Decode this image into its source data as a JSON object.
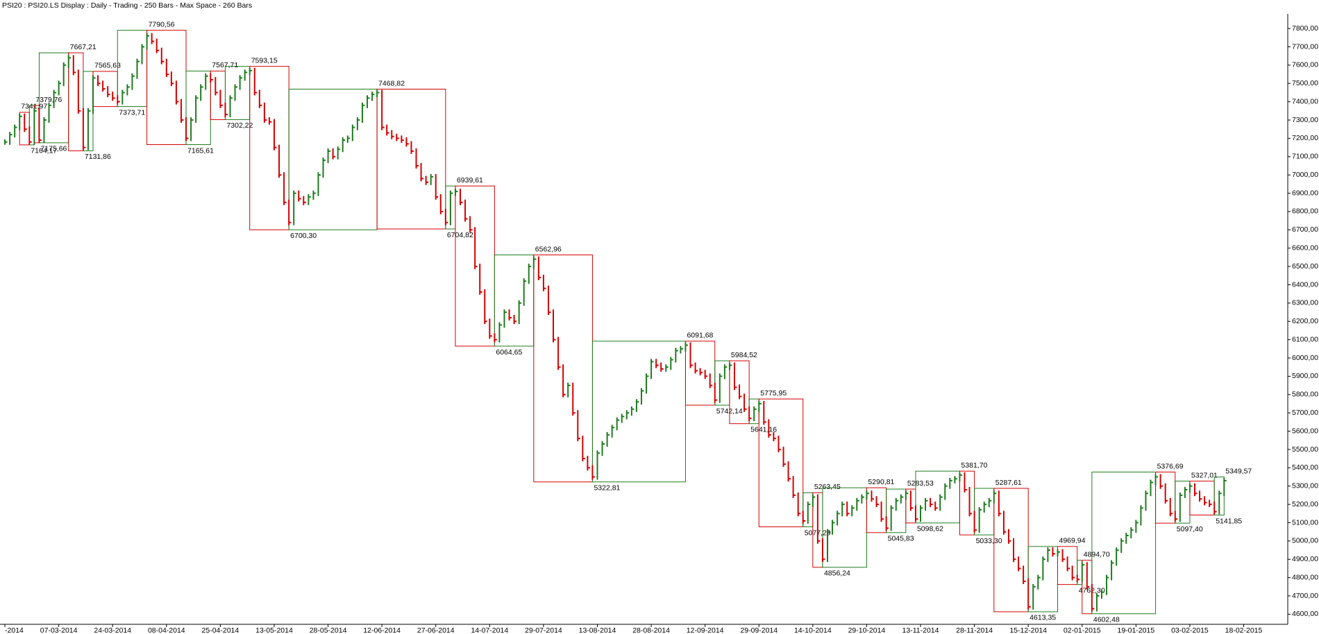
{
  "chart_data": {
    "type": "ohlc",
    "title": "PSI20 : PSI20.LS Display :  Daily  - Trading - 250 Bars  - Max Space - 260 Bars",
    "up_color": "#1e7b1e",
    "down_color": "#d40000",
    "xlim": [
      -1,
      262
    ],
    "ylim": [
      4560,
      7880
    ],
    "xticks": [
      {
        "value": 0,
        "label": "-2014"
      },
      {
        "value": 11,
        "label": "07-03-2014"
      },
      {
        "value": 22,
        "label": "24-03-2014"
      },
      {
        "value": 33,
        "label": "08-04-2014"
      },
      {
        "value": 44,
        "label": "25-04-2014"
      },
      {
        "value": 55,
        "label": "13-05-2014"
      },
      {
        "value": 66,
        "label": "28-05-2014"
      },
      {
        "value": 77,
        "label": "12-06-2014"
      },
      {
        "value": 88,
        "label": "27-06-2014"
      },
      {
        "value": 99,
        "label": "14-07-2014"
      },
      {
        "value": 110,
        "label": "29-07-2014"
      },
      {
        "value": 121,
        "label": "13-08-2014"
      },
      {
        "value": 132,
        "label": "28-08-2014"
      },
      {
        "value": 143,
        "label": "12-09-2014"
      },
      {
        "value": 154,
        "label": "29-09-2014"
      },
      {
        "value": 165,
        "label": "14-10-2014"
      },
      {
        "value": 176,
        "label": "29-10-2014"
      },
      {
        "value": 187,
        "label": "13-11-2014"
      },
      {
        "value": 198,
        "label": "28-11-2014"
      },
      {
        "value": 209,
        "label": "15-12-2014"
      },
      {
        "value": 220,
        "label": "02-01-2015"
      },
      {
        "value": 231,
        "label": "19-01-2015"
      },
      {
        "value": 242,
        "label": "03-02-2015"
      },
      {
        "value": 253,
        "label": "18-02-2015"
      }
    ],
    "yticks": [
      {
        "value": 4600,
        "label": "4600,00"
      },
      {
        "value": 4700,
        "label": "4700,00"
      },
      {
        "value": 4800,
        "label": "4800,00"
      },
      {
        "value": 4900,
        "label": "4900,00"
      },
      {
        "value": 5000,
        "label": "5000,00"
      },
      {
        "value": 5100,
        "label": "5100,00"
      },
      {
        "value": 5200,
        "label": "5200,00"
      },
      {
        "value": 5300,
        "label": "5300,00"
      },
      {
        "value": 5400,
        "label": "5400,00"
      },
      {
        "value": 5500,
        "label": "5500,00"
      },
      {
        "value": 5600,
        "label": "5600,00"
      },
      {
        "value": 5700,
        "label": "5700,00"
      },
      {
        "value": 5800,
        "label": "5800,00"
      },
      {
        "value": 5900,
        "label": "5900,00"
      },
      {
        "value": 6000,
        "label": "6000,00"
      },
      {
        "value": 6100,
        "label": "6100,00"
      },
      {
        "value": 6200,
        "label": "6200,00"
      },
      {
        "value": 6300,
        "label": "6300,00"
      },
      {
        "value": 6400,
        "label": "6400,00"
      },
      {
        "value": 6500,
        "label": "6500,00"
      },
      {
        "value": 6600,
        "label": "6600,00"
      },
      {
        "value": 6700,
        "label": "6700,00"
      },
      {
        "value": 6800,
        "label": "6800,00"
      },
      {
        "value": 6900,
        "label": "6900,00"
      },
      {
        "value": 7000,
        "label": "7000,00"
      },
      {
        "value": 7100,
        "label": "7100,00"
      },
      {
        "value": 7200,
        "label": "7200,00"
      },
      {
        "value": 7300,
        "label": "7300,00"
      },
      {
        "value": 7400,
        "label": "7400,00"
      },
      {
        "value": 7500,
        "label": "7500,00"
      },
      {
        "value": 7600,
        "label": "7600,00"
      },
      {
        "value": 7700,
        "label": "7700,00"
      },
      {
        "value": 7800,
        "label": "7800,00"
      }
    ],
    "values": [
      7180,
      7220,
      7260,
      7320,
      7250,
      7180,
      7350,
      7190,
      7300,
      7380,
      7450,
      7500,
      7600,
      7640,
      7560,
      7350,
      7150,
      7350,
      7530,
      7500,
      7470,
      7440,
      7420,
      7400,
      7450,
      7480,
      7540,
      7620,
      7700,
      7760,
      7730,
      7680,
      7620,
      7550,
      7500,
      7400,
      7300,
      7200,
      7300,
      7420,
      7480,
      7540,
      7520,
      7450,
      7380,
      7330,
      7420,
      7480,
      7530,
      7560,
      7570,
      7450,
      7380,
      7300,
      7290,
      7150,
      7000,
      6850,
      6740,
      6900,
      6870,
      6850,
      6880,
      6900,
      7000,
      7080,
      7130,
      7100,
      7140,
      7190,
      7200,
      7260,
      7300,
      7380,
      7420,
      7440,
      7450,
      7260,
      7230,
      7210,
      7200,
      7190,
      7170,
      7130,
      7050,
      6980,
      6960,
      6990,
      6880,
      6800,
      6740,
      6900,
      6910,
      6850,
      6760,
      6700,
      6500,
      6360,
      6200,
      6120,
      6100,
      6180,
      6250,
      6220,
      6200,
      6300,
      6420,
      6500,
      6540,
      6440,
      6380,
      6250,
      6100,
      5950,
      5800,
      5850,
      5700,
      5560,
      5450,
      5400,
      5350,
      5480,
      5530,
      5580,
      5620,
      5660,
      5680,
      5700,
      5720,
      5760,
      5820,
      5900,
      5980,
      5960,
      5940,
      5950,
      5990,
      6040,
      6050,
      6070,
      5960,
      5930,
      5920,
      5900,
      5850,
      5770,
      5900,
      5950,
      5960,
      5840,
      5790,
      5720,
      5670,
      5720,
      5750,
      5650,
      5580,
      5560,
      5500,
      5420,
      5340,
      5250,
      5150,
      5110,
      5200,
      5240,
      5000,
      4900,
      5050,
      5100,
      5150,
      5200,
      5150,
      5180,
      5220,
      5240,
      5260,
      5230,
      5200,
      5120,
      5070,
      5180,
      5220,
      5240,
      5260,
      5180,
      5120,
      5180,
      5220,
      5200,
      5180,
      5240,
      5300,
      5330,
      5340,
      5360,
      5280,
      5150,
      5060,
      5170,
      5200,
      5220,
      5260,
      5150,
      5050,
      5000,
      4900,
      4850,
      4780,
      4640,
      4750,
      4800,
      4900,
      4950,
      4930,
      4940,
      4900,
      4850,
      4800,
      4790,
      4870,
      4750,
      4630,
      4700,
      4720,
      4800,
      4880,
      4950,
      5000,
      5030,
      5060,
      5100,
      5180,
      5260,
      5320,
      5350,
      5300,
      5220,
      5150,
      5120,
      5250,
      5280,
      5300,
      5260,
      5230,
      5210,
      5200,
      5160,
      5260,
      5330
    ],
    "swings": [
      {
        "x": 3,
        "value": 7341.97,
        "label": "7341,97"
      },
      {
        "x": 5,
        "value": 7164.17,
        "label": "7164,17"
      },
      {
        "x": 6,
        "value": 7379.76,
        "label": "7379,76"
      },
      {
        "x": 7,
        "value": 7175.66,
        "label": "7175,66"
      },
      {
        "x": 13,
        "value": 7667.21,
        "label": "7667,21"
      },
      {
        "x": 16,
        "value": 7131.86,
        "label": "7131,86"
      },
      {
        "x": 18,
        "value": 7565.63,
        "label": "7565,63"
      },
      {
        "x": 23,
        "value": 7373.71,
        "label": "7373,71"
      },
      {
        "x": 29,
        "value": 7790.56,
        "label": "7790,56"
      },
      {
        "x": 37,
        "value": 7165.61,
        "label": "7165,61"
      },
      {
        "x": 42,
        "value": 7567.71,
        "label": "7567,71"
      },
      {
        "x": 45,
        "value": 7302.22,
        "label": "7302,22"
      },
      {
        "x": 50,
        "value": 7593.15,
        "label": "7593,15"
      },
      {
        "x": 58,
        "value": 6700.3,
        "label": "6700,30"
      },
      {
        "x": 76,
        "value": 7468.82,
        "label": "7468,82"
      },
      {
        "x": 90,
        "value": 6704.82,
        "label": "6704,82"
      },
      {
        "x": 92,
        "value": 6939.61,
        "label": "6939,61"
      },
      {
        "x": 100,
        "value": 6064.65,
        "label": "6064,65"
      },
      {
        "x": 108,
        "value": 6562.96,
        "label": "6562,96"
      },
      {
        "x": 120,
        "value": 5322.81,
        "label": "5322,81"
      },
      {
        "x": 139,
        "value": 6091.68,
        "label": "6091,68"
      },
      {
        "x": 145,
        "value": 5742.14,
        "label": "5742,14"
      },
      {
        "x": 148,
        "value": 5984.52,
        "label": "5984,52"
      },
      {
        "x": 152,
        "value": 5641.16,
        "label": "5641,16"
      },
      {
        "x": 154,
        "value": 5775.95,
        "label": "5775,95"
      },
      {
        "x": 163,
        "value": 5077.29,
        "label": "5077,29"
      },
      {
        "x": 165,
        "value": 5263.45,
        "label": "5263,45"
      },
      {
        "x": 167,
        "value": 4856.24,
        "label": "4856,24"
      },
      {
        "x": 176,
        "value": 5290.81,
        "label": "5290,81"
      },
      {
        "x": 180,
        "value": 5045.83,
        "label": "5045,83"
      },
      {
        "x": 184,
        "value": 5283.53,
        "label": "5283,53"
      },
      {
        "x": 186,
        "value": 5098.62,
        "label": "5098,62"
      },
      {
        "x": 195,
        "value": 5381.7,
        "label": "5381,70"
      },
      {
        "x": 198,
        "value": 5033.3,
        "label": "5033,30"
      },
      {
        "x": 202,
        "value": 5287.61,
        "label": "5287,61"
      },
      {
        "x": 209,
        "value": 4613.35,
        "label": "4613,35"
      },
      {
        "x": 215,
        "value": 4969.94,
        "label": "4969,94"
      },
      {
        "x": 219,
        "value": 4762.3,
        "label": "4762,30"
      },
      {
        "x": 220,
        "value": 4894.7,
        "label": "4894,70"
      },
      {
        "x": 222,
        "value": 4602.48,
        "label": "4602,48"
      },
      {
        "x": 235,
        "value": 5376.69,
        "label": "5376,69"
      },
      {
        "x": 239,
        "value": 5097.4,
        "label": "5097,40"
      },
      {
        "x": 242,
        "value": 5327.01,
        "label": "5327,01"
      },
      {
        "x": 247,
        "value": 5141.85,
        "label": "5141,85"
      },
      {
        "x": 249,
        "value": 5349.57,
        "label": "5349,57"
      }
    ]
  }
}
